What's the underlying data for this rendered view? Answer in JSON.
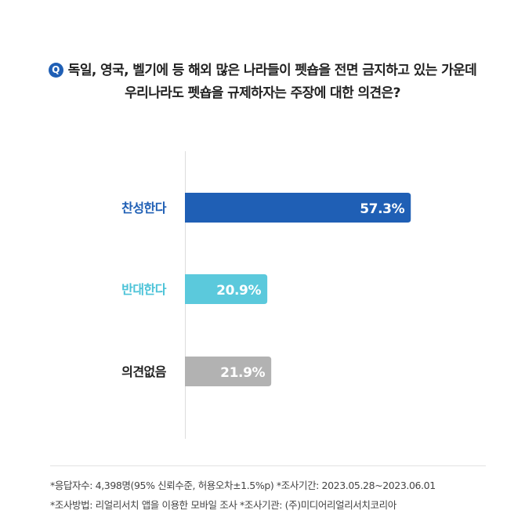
{
  "question": {
    "badge": "Q",
    "line1": "독일, 영국, 벨기에 등 해외 많은 나라들이 펫숍을 전면 금지하고 있는 가운데",
    "line2": "우리나라도 펫숍을 규제하자는 주장에 대한 의견은?"
  },
  "chart_data": {
    "type": "bar",
    "orientation": "horizontal",
    "categories": [
      "찬성한다",
      "반대한다",
      "의견없음"
    ],
    "values": [
      57.3,
      20.9,
      21.9
    ],
    "value_labels": [
      "57.3%",
      "20.9%",
      "21.9%"
    ],
    "unit": "%",
    "xlim": [
      0,
      100
    ],
    "grid": false,
    "colors": [
      "#1f5fb5",
      "#5bc9dc",
      "#b2b2b2"
    ],
    "label_colors": [
      "#1f5fb5",
      "#4cc3d8",
      "#222222"
    ]
  },
  "footnotes": {
    "line1": "*응답자수: 4,398명(95% 신뢰수준, 허용오차±1.5%p)  *조사기간: 2023.05.28~2023.06.01",
    "line2": "*조사방법: 리얼리서치 앱을 이용한 모바일 조사  *조사기관: (주)미디어리얼리서치코리아"
  }
}
